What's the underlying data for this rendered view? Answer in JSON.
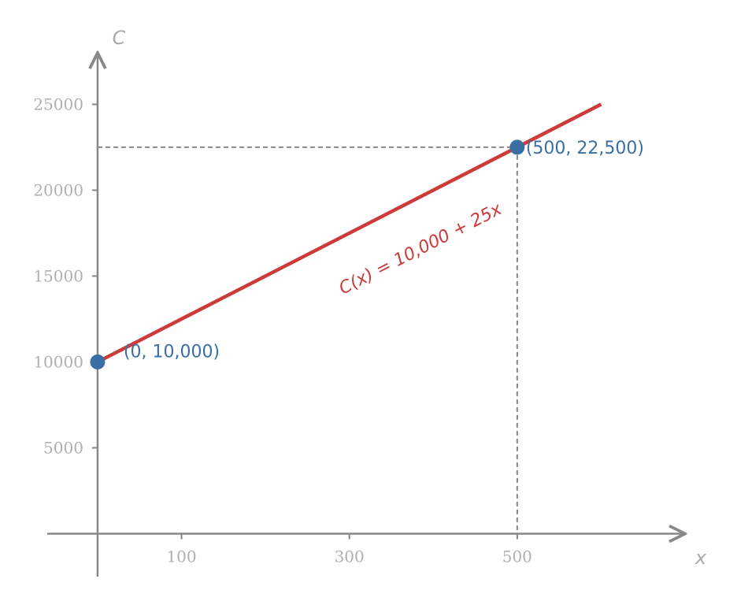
{
  "chart_data": {
    "type": "line",
    "x_label": "x",
    "y_label": "C",
    "annotation": "C(x) = 10,000 + 25x",
    "x": [
      0,
      600
    ],
    "series": [
      {
        "color": "#cc3a3a",
        "values": [
          10000,
          25000
        ]
      }
    ],
    "points": {
      "color": "#3a6ea5",
      "x": [
        0,
        500
      ],
      "values": [
        10000,
        22500
      ],
      "value_labels": [
        "(0, 10,000)",
        "(500, 22,500)"
      ]
    },
    "xlim": [
      -60,
      700
    ],
    "ylim": [
      -2500,
      28000
    ],
    "xticks": [
      100,
      300,
      500
    ],
    "yticks": [
      5000,
      10000,
      15000,
      20000,
      25000
    ],
    "guide_lines": true
  }
}
